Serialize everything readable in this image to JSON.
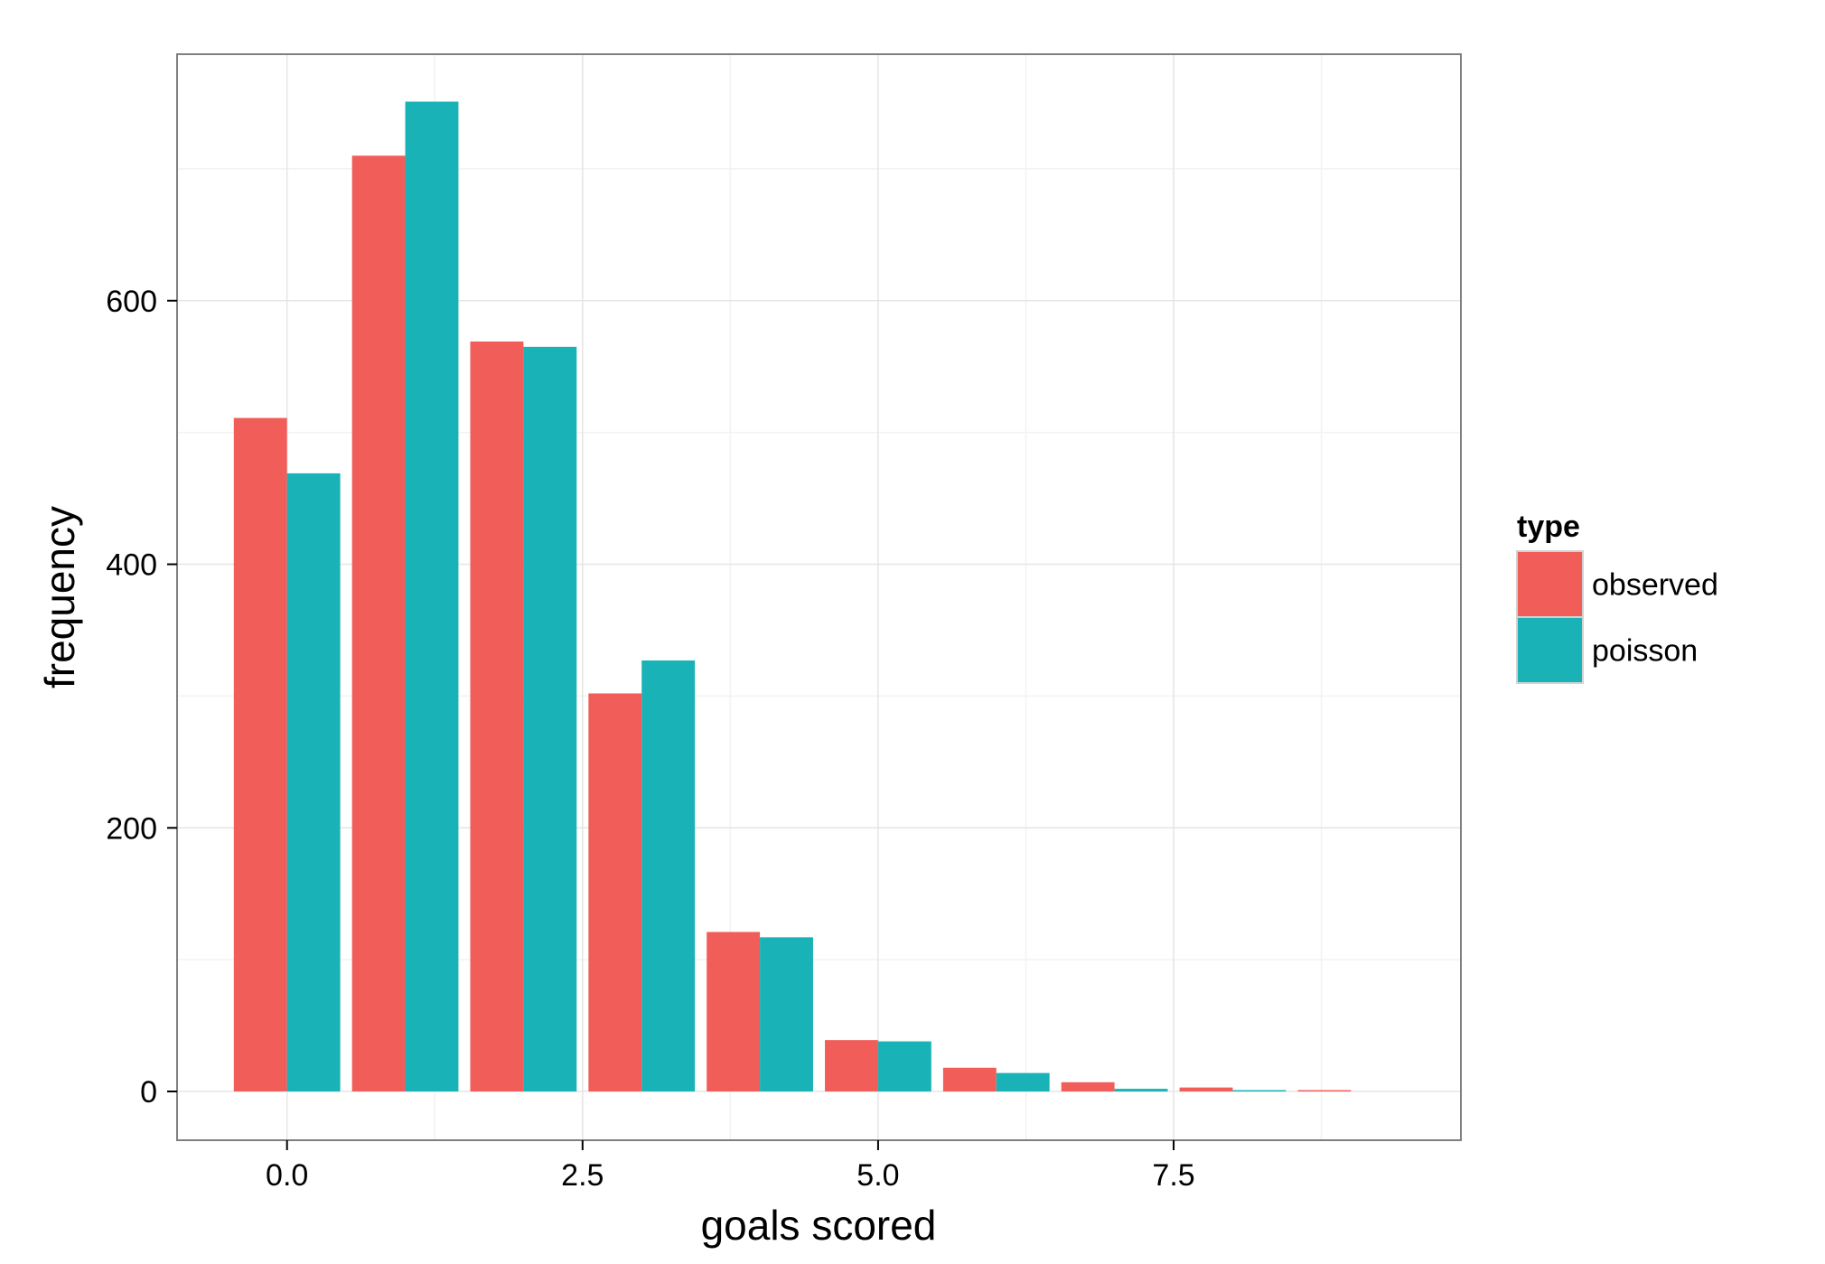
{
  "chart_data": {
    "type": "bar",
    "title": "",
    "xlabel": "goals scored",
    "ylabel": "frequency",
    "x": [
      0,
      1,
      2,
      3,
      4,
      5,
      6,
      7,
      8,
      9
    ],
    "xlim": [
      -0.93,
      9.93
    ],
    "ylim": [
      -37,
      787
    ],
    "x_ticks": [
      0,
      2.5,
      5,
      7.5
    ],
    "x_tick_labels": [
      "0.0",
      "2.5",
      "5.0",
      "7.5"
    ],
    "y_ticks": [
      0,
      200,
      400,
      600
    ],
    "y_tick_labels": [
      "0",
      "200",
      "400",
      "600"
    ],
    "grid": true,
    "legend": {
      "title": "type",
      "placement": "right"
    },
    "series": [
      {
        "name": "observed",
        "color": "#F15E5A",
        "values": [
          511,
          710,
          569,
          302,
          121,
          39,
          18,
          7,
          3,
          1
        ]
      },
      {
        "name": "poisson",
        "color": "#19B2B6",
        "values": [
          469,
          751,
          565,
          327,
          117,
          38,
          14,
          2,
          1,
          0
        ]
      }
    ]
  }
}
